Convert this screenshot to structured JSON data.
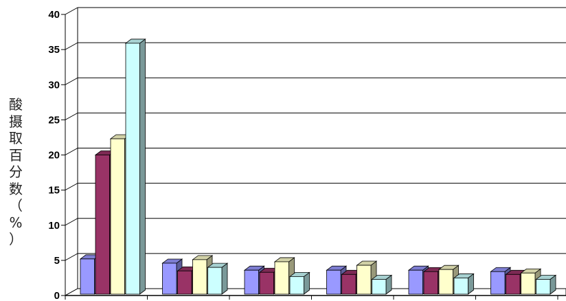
{
  "chart_data": {
    "type": "bar",
    "title": "",
    "xlabel": "",
    "ylabel": "酸\n摄\n取\n百\n分\n数\n（\n%\n）",
    "ylim": [
      0,
      40
    ],
    "yticks": [
      "0",
      "5",
      "10",
      "15",
      "20",
      "25",
      "30",
      "35",
      "40"
    ],
    "grid": true,
    "legend": "none",
    "categories": [
      "",
      "",
      "",
      "",
      "",
      ""
    ],
    "series": [
      {
        "color": "#9999ff",
        "values": [
          5.2,
          4.6,
          3.6,
          3.6,
          3.6,
          3.4
        ]
      },
      {
        "color": "#993366",
        "values": [
          20.0,
          3.5,
          3.3,
          3.0,
          3.4,
          3.0
        ]
      },
      {
        "color": "#ffffcc",
        "values": [
          22.3,
          5.1,
          4.8,
          4.3,
          3.7,
          3.2
        ]
      },
      {
        "color": "#ccffff",
        "values": [
          35.9,
          4.0,
          2.7,
          2.3,
          2.5,
          2.3
        ]
      }
    ]
  }
}
